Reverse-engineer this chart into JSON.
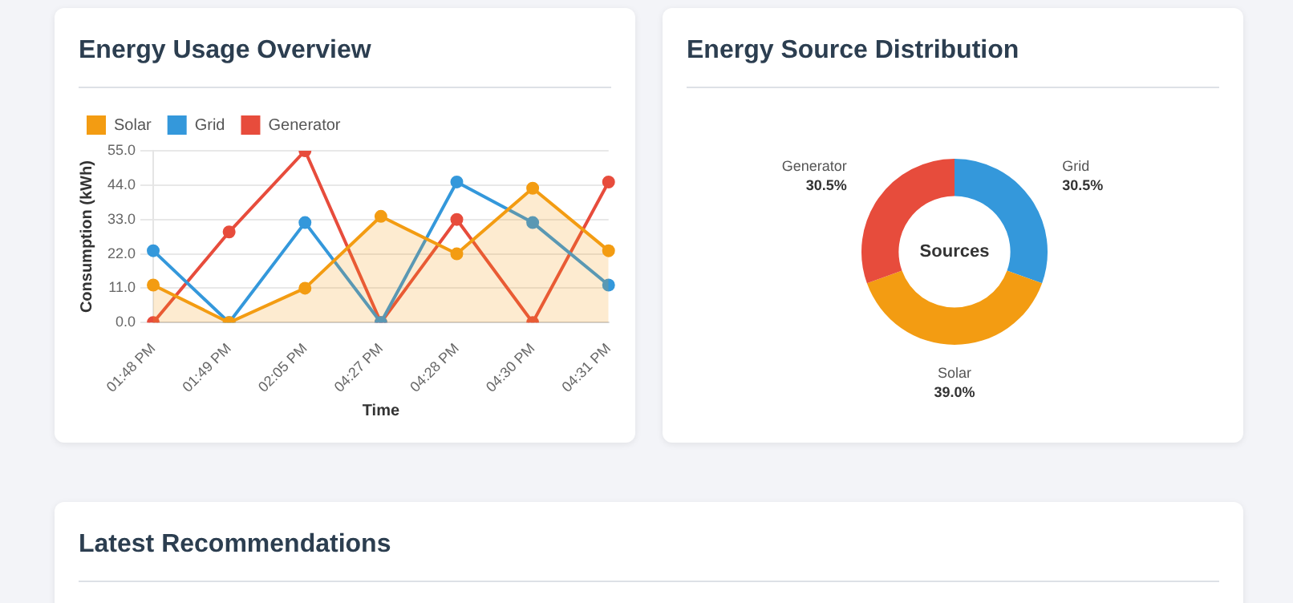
{
  "chart_data": [
    {
      "type": "line",
      "title": "Energy Usage Overview",
      "xlabel": "Time",
      "ylabel": "Consumption (kWh)",
      "categories": [
        "01:48 PM",
        "01:49 PM",
        "02:05 PM",
        "04:27 PM",
        "04:28 PM",
        "04:30 PM",
        "04:31 PM"
      ],
      "series": [
        {
          "name": "Solar",
          "type": "area",
          "color": "#f39c12",
          "values": [
            12,
            0,
            11,
            34,
            22,
            43,
            23
          ]
        },
        {
          "name": "Grid",
          "type": "line",
          "color": "#3498db",
          "values": [
            23,
            0,
            32,
            0,
            45,
            32,
            12
          ]
        },
        {
          "name": "Generator",
          "type": "line",
          "color": "#e74c3c",
          "values": [
            0,
            29,
            55,
            0,
            33,
            0,
            45
          ]
        }
      ],
      "ylim": [
        0,
        55
      ],
      "yticks": [
        {
          "value": 0,
          "label": "0.0"
        },
        {
          "value": 11,
          "label": "11.0"
        },
        {
          "value": 22,
          "label": "22.0"
        },
        {
          "value": 33,
          "label": "33.0"
        },
        {
          "value": 44,
          "label": "44.0"
        },
        {
          "value": 55,
          "label": "55.0"
        }
      ],
      "grid": "y",
      "legend": "top",
      "marker": "circle"
    },
    {
      "type": "donut",
      "title": "Energy Source Distribution",
      "categories": [
        "Grid",
        "Solar",
        "Generator"
      ],
      "values": [
        30.5,
        39.0,
        30.5
      ],
      "colors": [
        "#3498db",
        "#f39c12",
        "#e74c3c"
      ],
      "value_labels": [
        "30.5%",
        "39.0%",
        "30.5%"
      ],
      "annotations": [
        "Sources"
      ],
      "legend": false
    },
    {
      "type": "other",
      "title": "Latest Recommendations"
    }
  ]
}
